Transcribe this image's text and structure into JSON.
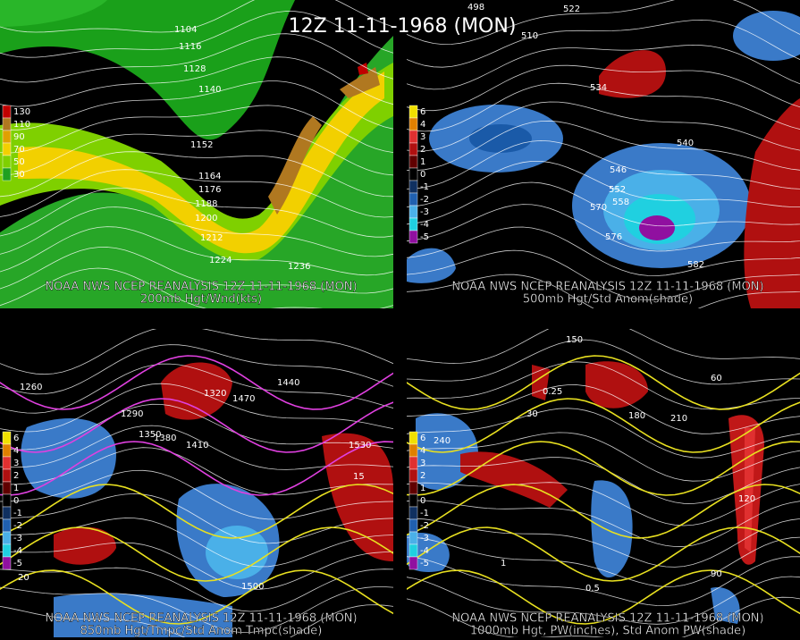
{
  "title": "12Z 11-11-1968 (MON)",
  "panels": [
    {
      "source": "NOAA NWS NCEP REANALYSIS 12Z 11-11-1968 (MON)",
      "caption": "200mb Hgt/Wnd(kts)",
      "legend": [
        "130",
        "110",
        "90",
        "70",
        "50",
        "30"
      ],
      "contour_labels": [
        "1104",
        "1116",
        "1128",
        "1140",
        "1152",
        "1164",
        "1176",
        "1188",
        "1200",
        "1212",
        "1224",
        "1236"
      ]
    },
    {
      "source": "NOAA NWS NCEP REANALYSIS 12Z 11-11-1968 (MON)",
      "caption": "500mb Hgt/Std Anom(shade)",
      "legend": [
        "6",
        "4",
        "3",
        "2",
        "1",
        "0",
        "-1",
        "-2",
        "-3",
        "-4",
        "-5"
      ],
      "contour_labels": [
        "498",
        "510",
        "522",
        "534",
        "540",
        "546",
        "552",
        "558",
        "570",
        "576",
        "582"
      ]
    },
    {
      "source": "NOAA NWS NCEP REANALYSIS 12Z 11-11-1968 (MON)",
      "caption": "850mb Hgt/Tmpc/Std Anom Tmpc(shade)",
      "legend": [
        "6",
        "4",
        "3",
        "2",
        "1",
        "0",
        "-1",
        "-2",
        "-3",
        "-4",
        "-5"
      ],
      "contour_labels": [
        "1260",
        "1290",
        "1320",
        "1350",
        "1380",
        "1410",
        "1440",
        "1470",
        "1500",
        "1530",
        "15",
        "20"
      ]
    },
    {
      "source": "NOAA NWS NCEP REANALYSIS 12Z 11-11-1968 (MON)",
      "caption": "1000mb Hgt, PW(inches), Std Anom PW(shade)",
      "legend": [
        "6",
        "4",
        "3",
        "2",
        "1",
        "0",
        "-1",
        "-2",
        "-3",
        "-4",
        "-5"
      ],
      "contour_labels": [
        "150",
        "180",
        "210",
        "240",
        "30",
        "60",
        "90",
        "120",
        "0.25",
        "0.5",
        "1"
      ]
    }
  ]
}
